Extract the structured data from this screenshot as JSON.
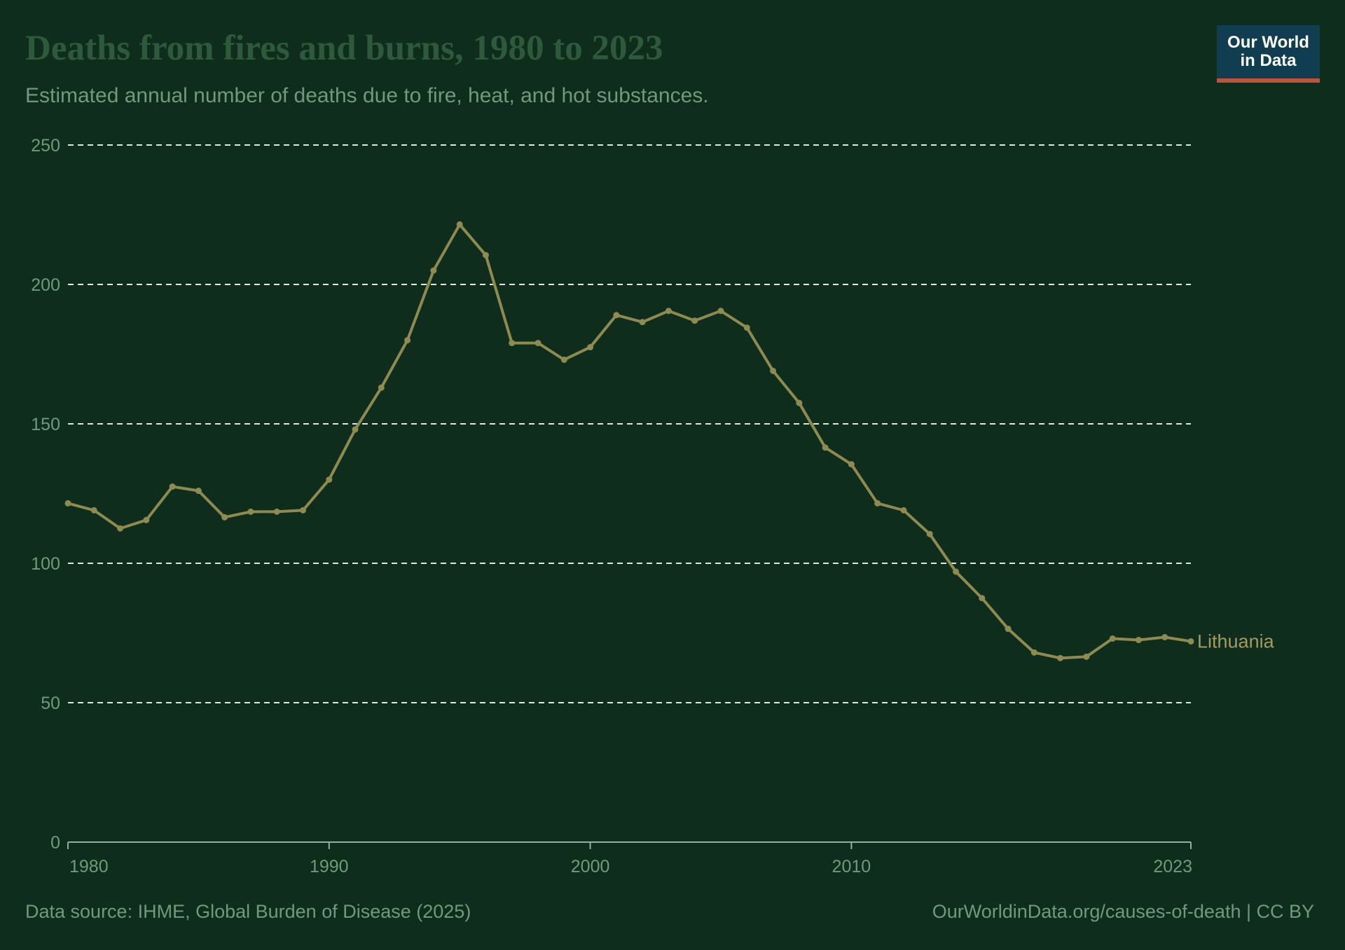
{
  "header": {
    "title": "Deaths from fires and burns, 1980 to 2023",
    "subtitle": "Estimated annual number of deaths due to fire, heat, and hot substances."
  },
  "logo": {
    "line1": "Our World",
    "line2": "in Data"
  },
  "footer": {
    "source": "Data source: IHME, Global Burden of Disease (2025)",
    "url": "OurWorldinData.org/causes-of-death | CC BY"
  },
  "colors": {
    "background": "#0f2d1c",
    "series": "#8f8a4e",
    "label": "#a49b5c",
    "grid": "#dfe8e0",
    "axis": "#8fb39a"
  },
  "chart_data": {
    "type": "line",
    "title": "Deaths from fires and burns, 1980 to 2023",
    "subtitle": "Estimated annual number of deaths due to fire, heat, and hot substances.",
    "xlabel": "",
    "ylabel": "",
    "xlim": [
      1980,
      2023
    ],
    "ylim": [
      0,
      250
    ],
    "x_ticks": [
      "1980",
      "1990",
      "2000",
      "2010",
      "2023"
    ],
    "y_ticks": [
      "0",
      "50",
      "100",
      "150",
      "200",
      "250"
    ],
    "grid": "horizontal dashed",
    "series": [
      {
        "name": "Lithuania",
        "x": [
          1980,
          1981,
          1982,
          1983,
          1984,
          1985,
          1986,
          1987,
          1988,
          1989,
          1990,
          1991,
          1992,
          1993,
          1994,
          1995,
          1996,
          1997,
          1998,
          1999,
          2000,
          2001,
          2002,
          2003,
          2004,
          2005,
          2006,
          2007,
          2008,
          2009,
          2010,
          2011,
          2012,
          2013,
          2014,
          2015,
          2016,
          2017,
          2018,
          2019,
          2020,
          2021,
          2022,
          2023
        ],
        "values": [
          121.5,
          119,
          112.5,
          115.5,
          127.5,
          126,
          116.5,
          118.5,
          118.5,
          119,
          130,
          148,
          163,
          180,
          205,
          221.5,
          210.5,
          179,
          179,
          173,
          177.5,
          189,
          186.5,
          190.5,
          187,
          190.5,
          184.5,
          169,
          157.5,
          141.5,
          135.5,
          121.5,
          119,
          110.5,
          97,
          87.5,
          76.5,
          68,
          66,
          66.5,
          73,
          72.5,
          73.5,
          72
        ]
      }
    ]
  }
}
